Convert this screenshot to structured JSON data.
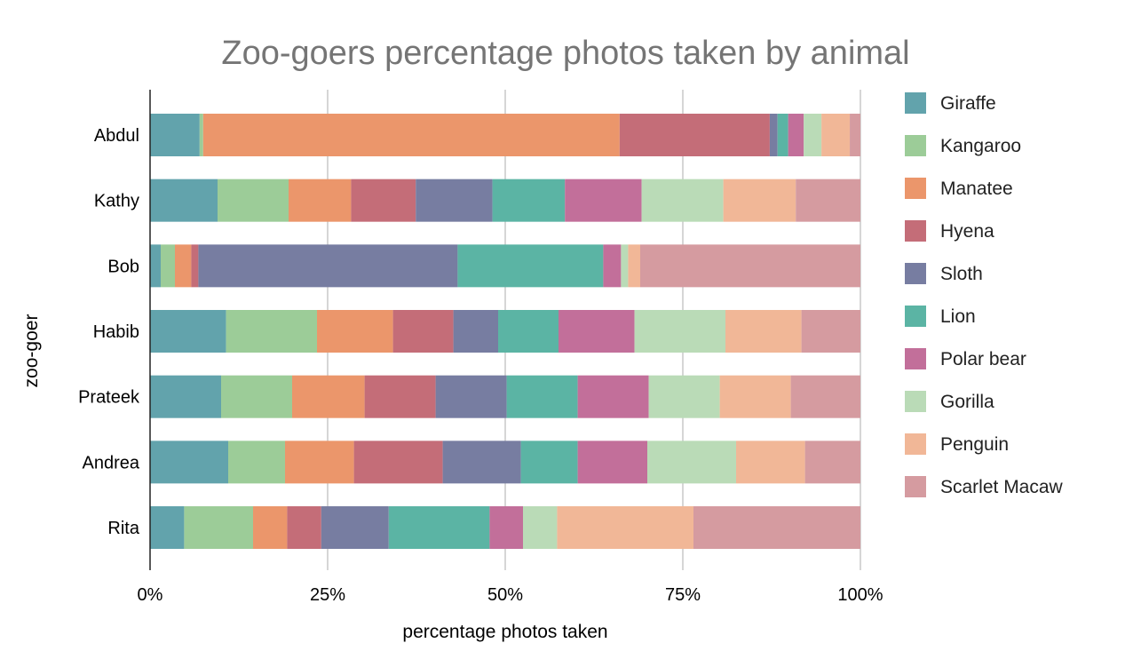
{
  "chart_data": {
    "type": "bar",
    "orientation": "horizontal",
    "stacked": "percent",
    "title": "Zoo-goers percentage photos taken by animal",
    "xlabel": "percentage photos taken",
    "ylabel": "zoo-goer",
    "xlim": [
      0,
      100
    ],
    "xticks": [
      "0%",
      "25%",
      "50%",
      "75%",
      "100%"
    ],
    "grid": "vertical",
    "legend_position": "right",
    "categories": [
      "Abdul",
      "Kathy",
      "Bob",
      "Habib",
      "Prateek",
      "Andrea",
      "Rita"
    ],
    "series": [
      {
        "name": "Giraffe",
        "color": "#62a3ac",
        "values": [
          7.0,
          9.5,
          1.5,
          10.7,
          10.0,
          11.0,
          4.8
        ]
      },
      {
        "name": "Kangaroo",
        "color": "#9ccc98",
        "values": [
          0.5,
          10.0,
          2.0,
          12.8,
          10.0,
          8.0,
          9.7
        ]
      },
      {
        "name": "Manatee",
        "color": "#eb966b",
        "values": [
          58.8,
          8.8,
          2.3,
          10.7,
          10.2,
          9.7,
          4.8
        ]
      },
      {
        "name": "Hyena",
        "color": "#c46d78",
        "values": [
          21.2,
          9.1,
          1.0,
          8.5,
          10.0,
          12.5,
          4.8
        ]
      },
      {
        "name": "Sloth",
        "color": "#777da1",
        "values": [
          1.1,
          10.8,
          36.5,
          6.3,
          10.0,
          11.0,
          9.5
        ]
      },
      {
        "name": "Lion",
        "color": "#5bb4a4",
        "values": [
          1.5,
          10.2,
          20.5,
          8.5,
          10.0,
          8.0,
          14.2
        ]
      },
      {
        "name": "Polar bear",
        "color": "#c26f9a",
        "values": [
          2.2,
          10.8,
          2.5,
          10.7,
          10.0,
          9.8,
          4.7
        ]
      },
      {
        "name": "Gorilla",
        "color": "#badbb7",
        "values": [
          2.5,
          11.5,
          1.0,
          12.8,
          10.0,
          12.5,
          4.8
        ]
      },
      {
        "name": "Penguin",
        "color": "#f1b797",
        "values": [
          4.0,
          10.2,
          1.7,
          10.7,
          10.0,
          9.7,
          19.2
        ]
      },
      {
        "name": "Scarlet Macaw",
        "color": "#d59ba0",
        "values": [
          1.5,
          9.1,
          31.0,
          8.3,
          9.8,
          7.8,
          23.5
        ]
      }
    ]
  }
}
